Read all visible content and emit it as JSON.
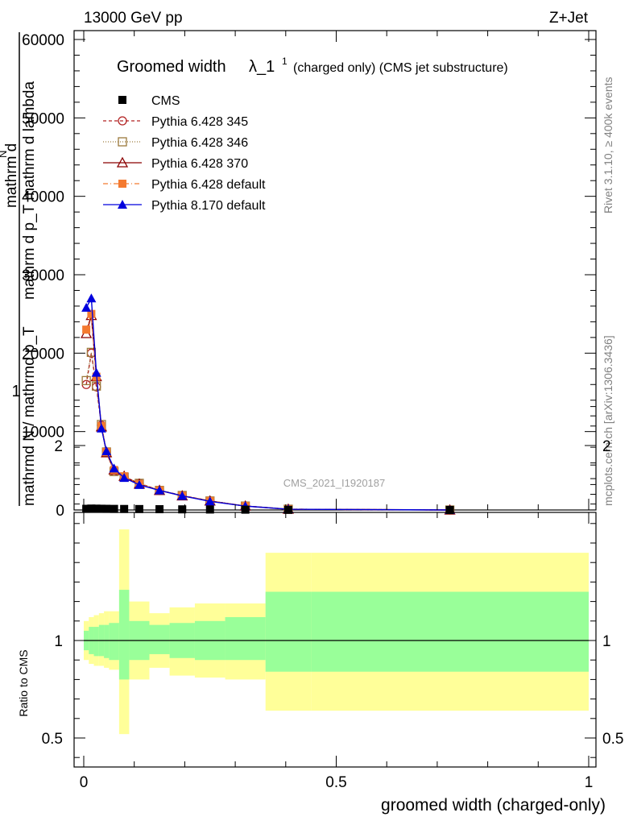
{
  "header": {
    "energy_label": "13000 GeV pp",
    "process_label": "Z+Jet"
  },
  "side_labels": {
    "rivet": "Rivet 3.1.10, ≥ 400k events",
    "mcplots": "mcplots.cern.ch [arXiv:1306.3436]"
  },
  "chart_data": {
    "type": "line",
    "title_main": "Groomed width",
    "title_symbol": "λ_1",
    "title_sup": "1",
    "title_suffix": "(charged only) (CMS jet substructure)",
    "watermark": "CMS_2021_I1920187",
    "xlabel": "groomed width (charged-only)",
    "ylabel_top": "1",
    "ylabel_main": "mathrmd N / mathrmd p_T",
    "ylabel_frac": "mathrm d",
    "ylabel_extra": "mathrm d p_T mathrm d lambda",
    "ylabel_sup": "N",
    "ratio_ylabel": "Ratio to CMS",
    "xlim": [
      0,
      1
    ],
    "ylim_main": [
      0,
      60000
    ],
    "ylim_ratio": [
      0.35,
      2.3
    ],
    "x_ticks": [
      "0",
      "0.5",
      "1"
    ],
    "y_ticks_main": [
      "0",
      "10000",
      "20000",
      "30000",
      "40000",
      "50000",
      "60000"
    ],
    "y_ticks_ratio": [
      "0.5",
      "1",
      "2"
    ],
    "bin_edges": [
      0,
      0.01,
      0.02,
      0.03,
      0.04,
      0.05,
      0.07,
      0.09,
      0.13,
      0.17,
      0.22,
      0.28,
      0.36,
      0.45,
      1.0
    ],
    "x_centers": [
      0.005,
      0.015,
      0.025,
      0.035,
      0.045,
      0.06,
      0.08,
      0.11,
      0.15,
      0.195,
      0.25,
      0.32,
      0.405,
      0.725
    ],
    "series": [
      {
        "name": "CMS",
        "color": "#000000",
        "marker": "square-filled",
        "dash": "none",
        "values": [
          150,
          180,
          170,
          160,
          150,
          140,
          130,
          120,
          100,
          80,
          60,
          40,
          20,
          5
        ]
      },
      {
        "name": "Pythia 6.428 345",
        "color": "#b22222",
        "marker": "circle-open",
        "dash": "4,3",
        "values": [
          16000,
          20000,
          15700,
          10800,
          7400,
          4900,
          4200,
          3400,
          2500,
          1850,
          1150,
          500,
          100,
          0
        ]
      },
      {
        "name": "Pythia 6.428 346",
        "color": "#9c7a3c",
        "marker": "square-open",
        "dash": "1,2",
        "values": [
          16500,
          20100,
          15800,
          10900,
          7400,
          4900,
          4200,
          3400,
          2500,
          1850,
          1150,
          500,
          100,
          0
        ]
      },
      {
        "name": "Pythia 6.428 370",
        "color": "#8b0000",
        "marker": "triangle-open",
        "dash": "none",
        "values": [
          22500,
          24800,
          17000,
          10600,
          7300,
          5100,
          4300,
          3300,
          2500,
          1800,
          1150,
          500,
          100,
          0
        ]
      },
      {
        "name": "Pythia 6.428 default",
        "color": "#f47a30",
        "marker": "square-filled",
        "dash": "6,3,1,3",
        "values": [
          23000,
          25000,
          17000,
          10700,
          7400,
          5100,
          4300,
          3300,
          2500,
          1800,
          1150,
          500,
          100,
          0
        ]
      },
      {
        "name": "Pythia 8.170 default",
        "color": "#0000dd",
        "marker": "triangle-filled",
        "dash": "none",
        "values": [
          25800,
          27000,
          17500,
          10400,
          7500,
          5300,
          4100,
          3200,
          2500,
          1800,
          1100,
          500,
          100,
          0
        ]
      }
    ],
    "ratio_band_inner": {
      "color": "#99ff99",
      "low": [
        0.95,
        0.93,
        0.92,
        0.92,
        0.91,
        0.9,
        0.8,
        0.9,
        0.93,
        0.91,
        0.9,
        0.9,
        0.84,
        0.84
      ],
      "high": [
        1.05,
        1.07,
        1.07,
        1.08,
        1.08,
        1.09,
        1.26,
        1.1,
        1.08,
        1.09,
        1.1,
        1.12,
        1.25,
        1.25
      ]
    },
    "ratio_band_outer": {
      "color": "#ffff99",
      "low": [
        0.9,
        0.88,
        0.87,
        0.87,
        0.86,
        0.85,
        0.52,
        0.8,
        0.86,
        0.82,
        0.81,
        0.8,
        0.64,
        0.64
      ],
      "high": [
        1.1,
        1.12,
        1.13,
        1.14,
        1.15,
        1.15,
        1.57,
        1.2,
        1.14,
        1.17,
        1.19,
        1.19,
        1.45,
        1.45
      ]
    },
    "legend_position": "top-left"
  }
}
